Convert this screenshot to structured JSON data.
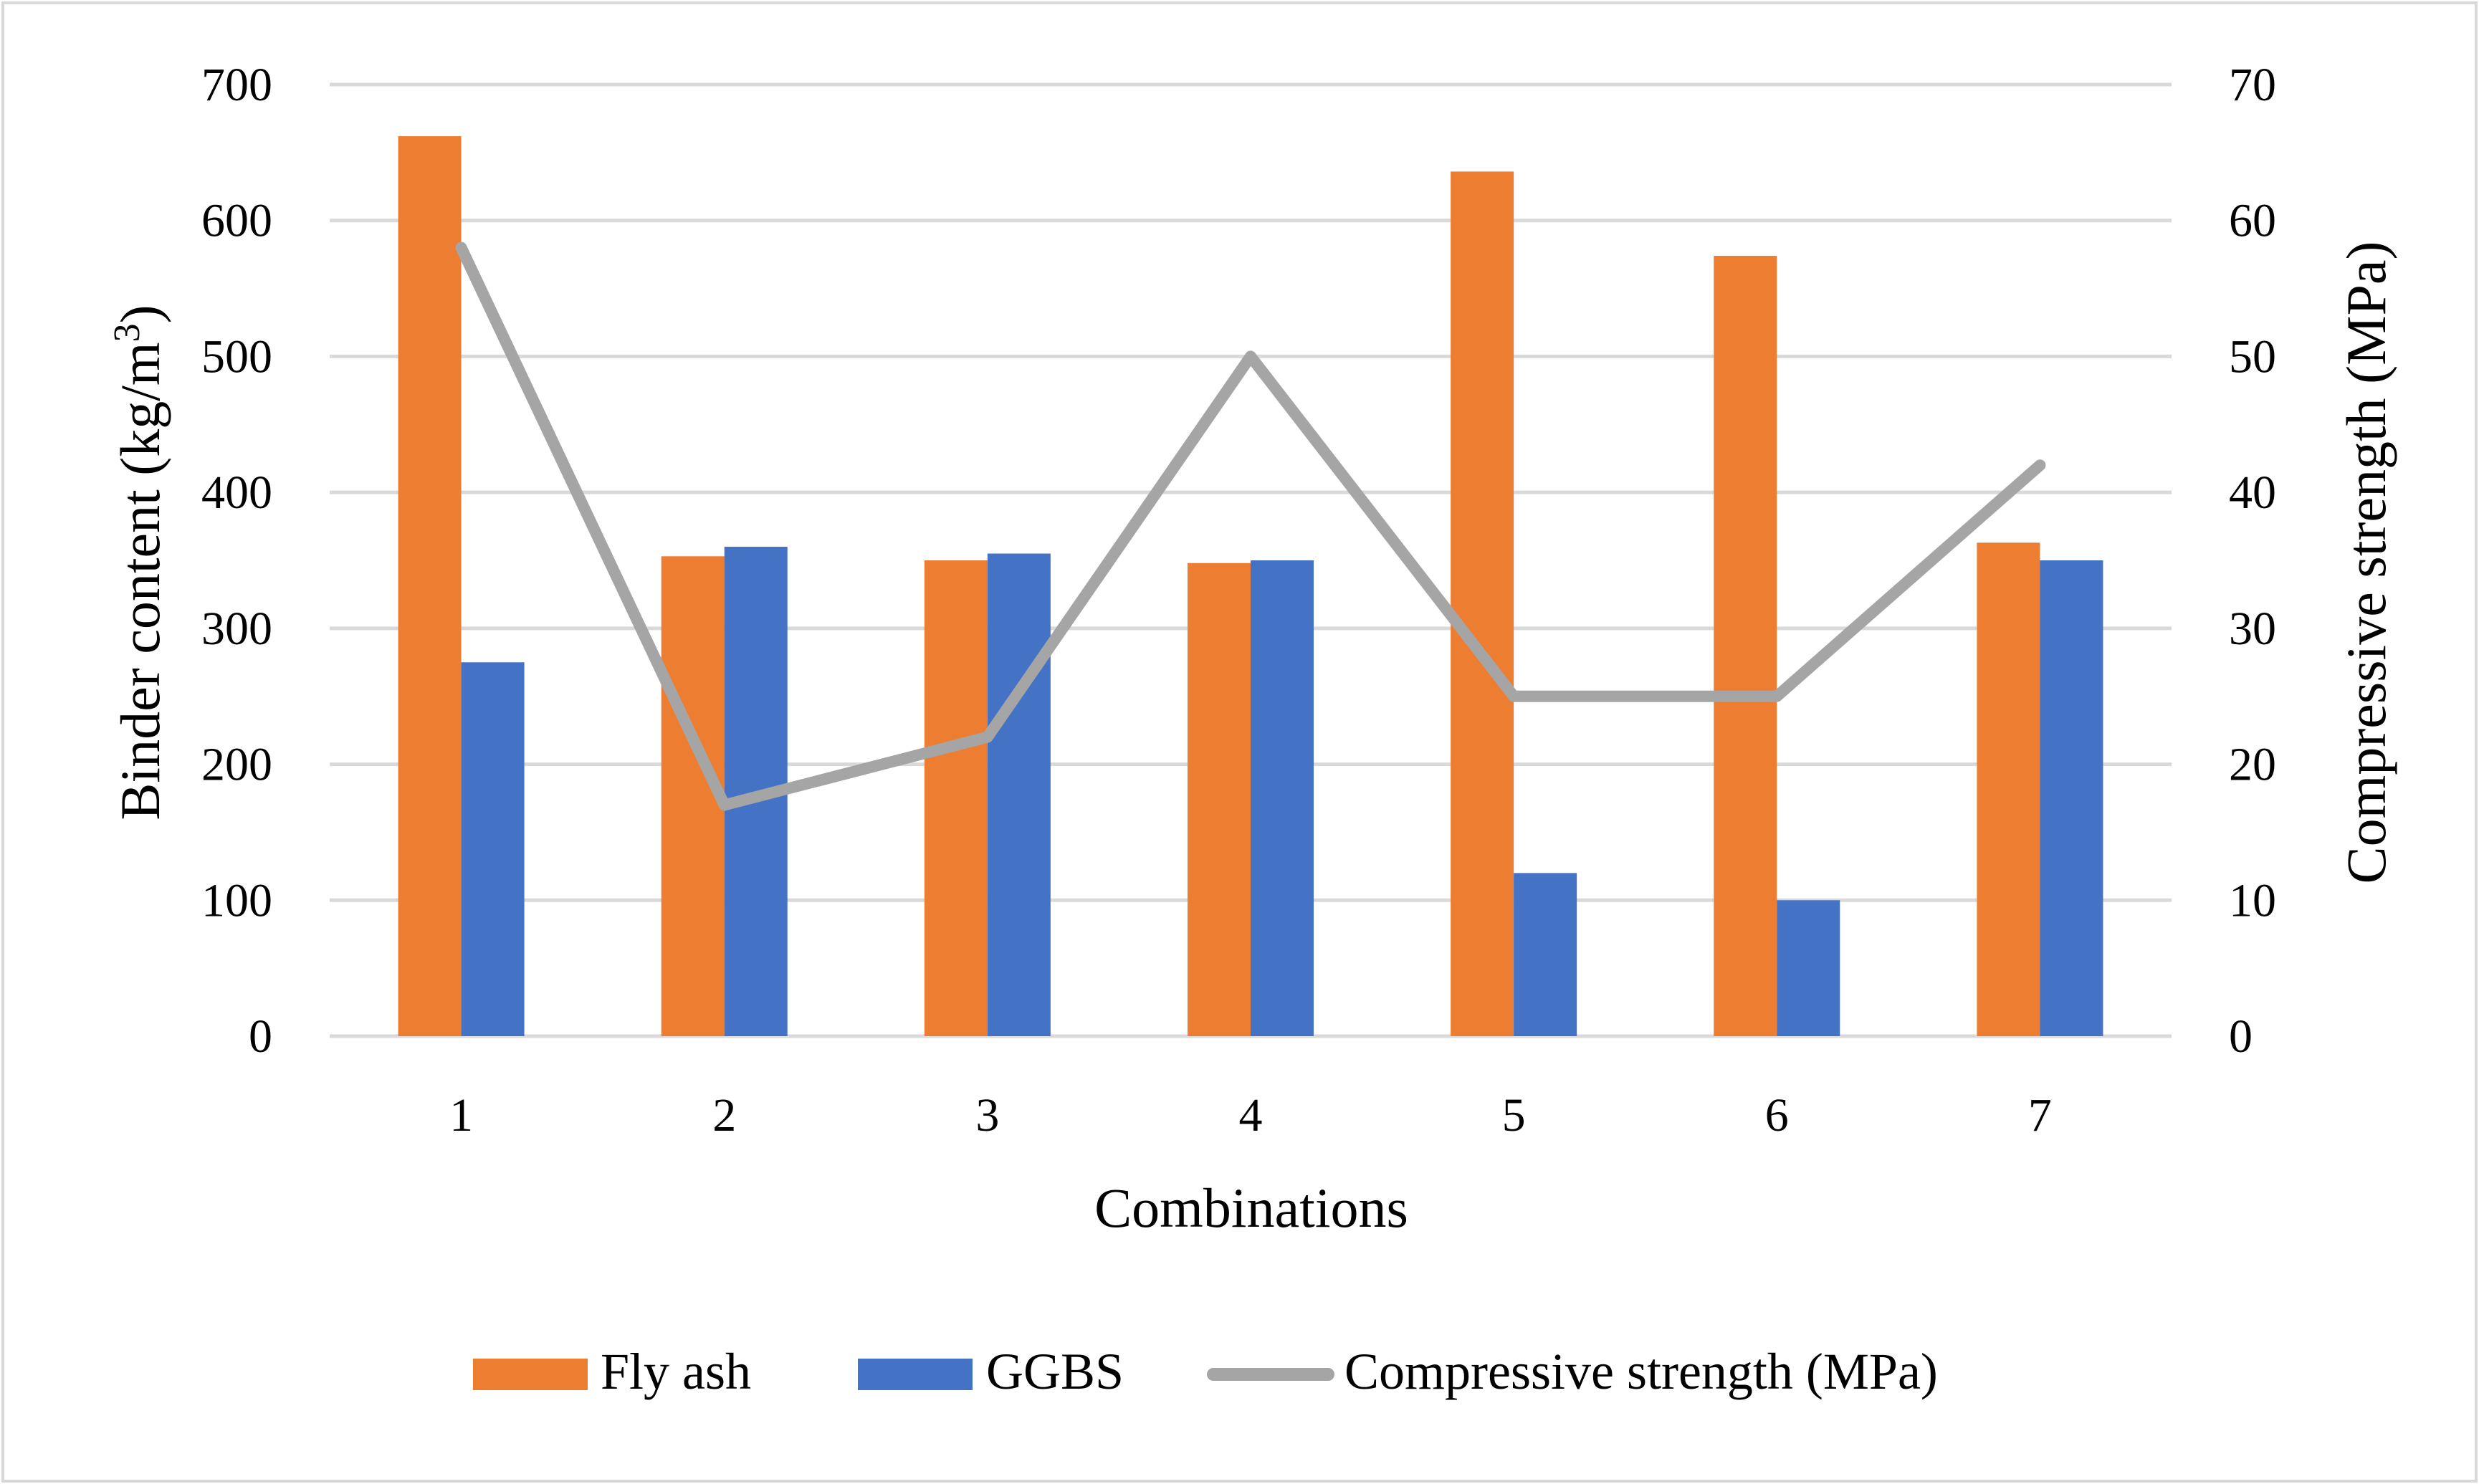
{
  "chart_data": {
    "type": "bar",
    "categories": [
      "1",
      "2",
      "3",
      "4",
      "5",
      "6",
      "7"
    ],
    "series": [
      {
        "name": "Fly ash",
        "type": "bar",
        "axis": "left",
        "color": "#ED7D31",
        "values": [
          662,
          353,
          350,
          348,
          636,
          574,
          363
        ]
      },
      {
        "name": "GGBS",
        "type": "bar",
        "axis": "left",
        "color": "#4472C4",
        "values": [
          275,
          360,
          355,
          350,
          120,
          100,
          350
        ]
      },
      {
        "name": "Compressive strength (MPa)",
        "type": "line",
        "axis": "right",
        "color": "#A5A5A5",
        "values": [
          58,
          17,
          22,
          50,
          25,
          25,
          42
        ]
      }
    ],
    "xlabel": "Combinations",
    "ylabel": "Binder content (kg/m",
    "ylabel_sup": "3",
    "ylabel_end": ")",
    "y2label": "Compressive strength (MPa)",
    "ylim": [
      0,
      700
    ],
    "y2lim": [
      0,
      70
    ],
    "yticks": [
      "0",
      "100",
      "200",
      "300",
      "400",
      "500",
      "600",
      "700"
    ],
    "y2ticks": [
      "0",
      "10",
      "20",
      "30",
      "40",
      "50",
      "60",
      "70"
    ],
    "grid": true,
    "legend_position": "bottom"
  }
}
